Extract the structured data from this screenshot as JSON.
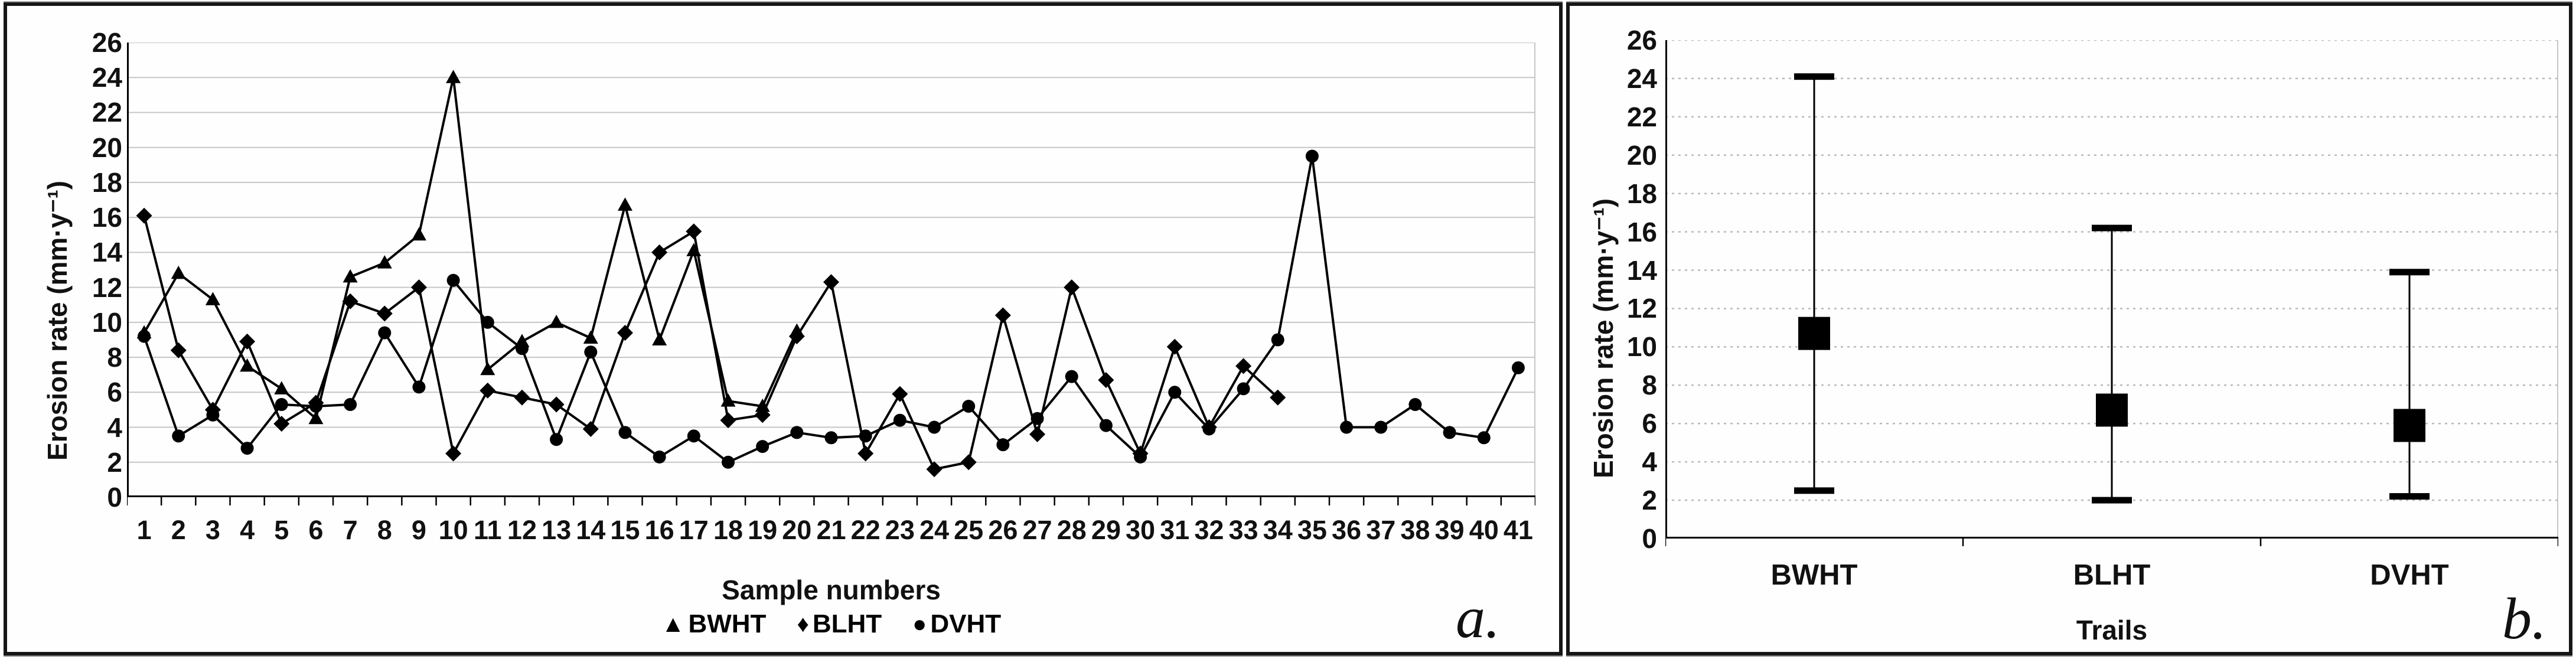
{
  "panel_a": {
    "panel_label": "a.",
    "y_title": "Erosion rate  (mm·y⁻¹)",
    "x_title": "Sample numbers",
    "legend": [
      {
        "marker": "▲",
        "label": "BWHT"
      },
      {
        "marker": "♦",
        "label": "BLHT"
      },
      {
        "marker": "●",
        "label": "DVHT"
      }
    ]
  },
  "panel_b": {
    "panel_label": "b.",
    "y_title": "Erosion rate  (mm·y⁻¹)",
    "x_title": "Trails"
  },
  "colors": {
    "series": "#000000",
    "grid_solid": "#c6c6c6",
    "grid_dotted": "#b9b9b9",
    "axis": "#000000"
  },
  "chart_data": [
    {
      "type": "line",
      "title": "",
      "xlabel": "Sample numbers",
      "ylabel": "Erosion rate (mm·y⁻¹)",
      "ylim": [
        0,
        26
      ],
      "y_ticks": [
        0,
        2,
        4,
        6,
        8,
        10,
        12,
        14,
        16,
        18,
        20,
        22,
        24,
        26
      ],
      "x": [
        1,
        2,
        3,
        4,
        5,
        6,
        7,
        8,
        9,
        10,
        11,
        12,
        13,
        14,
        15,
        16,
        17,
        18,
        19,
        20,
        21,
        22,
        23,
        24,
        25,
        26,
        27,
        28,
        29,
        30,
        31,
        32,
        33,
        34,
        35,
        36,
        37,
        38,
        39,
        40,
        41
      ],
      "grid": "horizontal-solid",
      "legend_position": "bottom",
      "series": [
        {
          "name": "BWHT",
          "marker": "triangle",
          "values": [
            9.4,
            12.8,
            11.3,
            7.5,
            6.2,
            4.5,
            12.6,
            13.4,
            15.0,
            24.0,
            7.3,
            8.9,
            10.0,
            9.1,
            16.7,
            9.0,
            14.1,
            5.5,
            5.2,
            9.5
          ]
        },
        {
          "name": "BLHT",
          "marker": "diamond",
          "values": [
            16.1,
            8.4,
            5.0,
            8.9,
            4.2,
            5.4,
            11.2,
            10.5,
            12.0,
            2.5,
            6.1,
            5.7,
            5.3,
            3.9,
            9.4,
            14.0,
            15.2,
            4.4,
            4.7,
            9.2,
            12.3,
            2.5,
            5.9,
            1.6,
            2.0,
            10.4,
            3.6,
            12.0,
            6.7,
            2.5,
            8.6,
            4.0,
            7.5,
            5.7
          ]
        },
        {
          "name": "DVHT",
          "marker": "circle",
          "values": [
            9.2,
            3.5,
            4.7,
            2.8,
            5.3,
            5.2,
            5.3,
            9.4,
            6.3,
            12.4,
            10.0,
            8.5,
            3.3,
            8.3,
            3.7,
            2.3,
            3.5,
            2.0,
            2.9,
            3.7,
            3.4,
            3.5,
            4.4,
            4.0,
            5.2,
            3.0,
            4.5,
            6.9,
            4.1,
            2.3,
            6.0,
            3.9,
            6.2,
            9.0,
            19.5,
            4.0,
            4.0,
            5.3,
            3.7,
            3.4,
            7.4
          ]
        }
      ]
    },
    {
      "type": "errorbar",
      "title": "",
      "xlabel": "Trails",
      "ylabel": "Erosion rate (mm·y⁻¹)",
      "ylim": [
        0,
        26
      ],
      "y_ticks": [
        0,
        2,
        4,
        6,
        8,
        10,
        12,
        14,
        16,
        18,
        20,
        22,
        24,
        26
      ],
      "grid": "horizontal-dotted",
      "marker": "square",
      "categories": [
        "BWHT",
        "BLHT",
        "DVHT"
      ],
      "mean": [
        10.7,
        6.7,
        5.9
      ],
      "min": [
        2.5,
        2.0,
        2.2
      ],
      "max": [
        24.1,
        16.2,
        13.9
      ]
    }
  ]
}
